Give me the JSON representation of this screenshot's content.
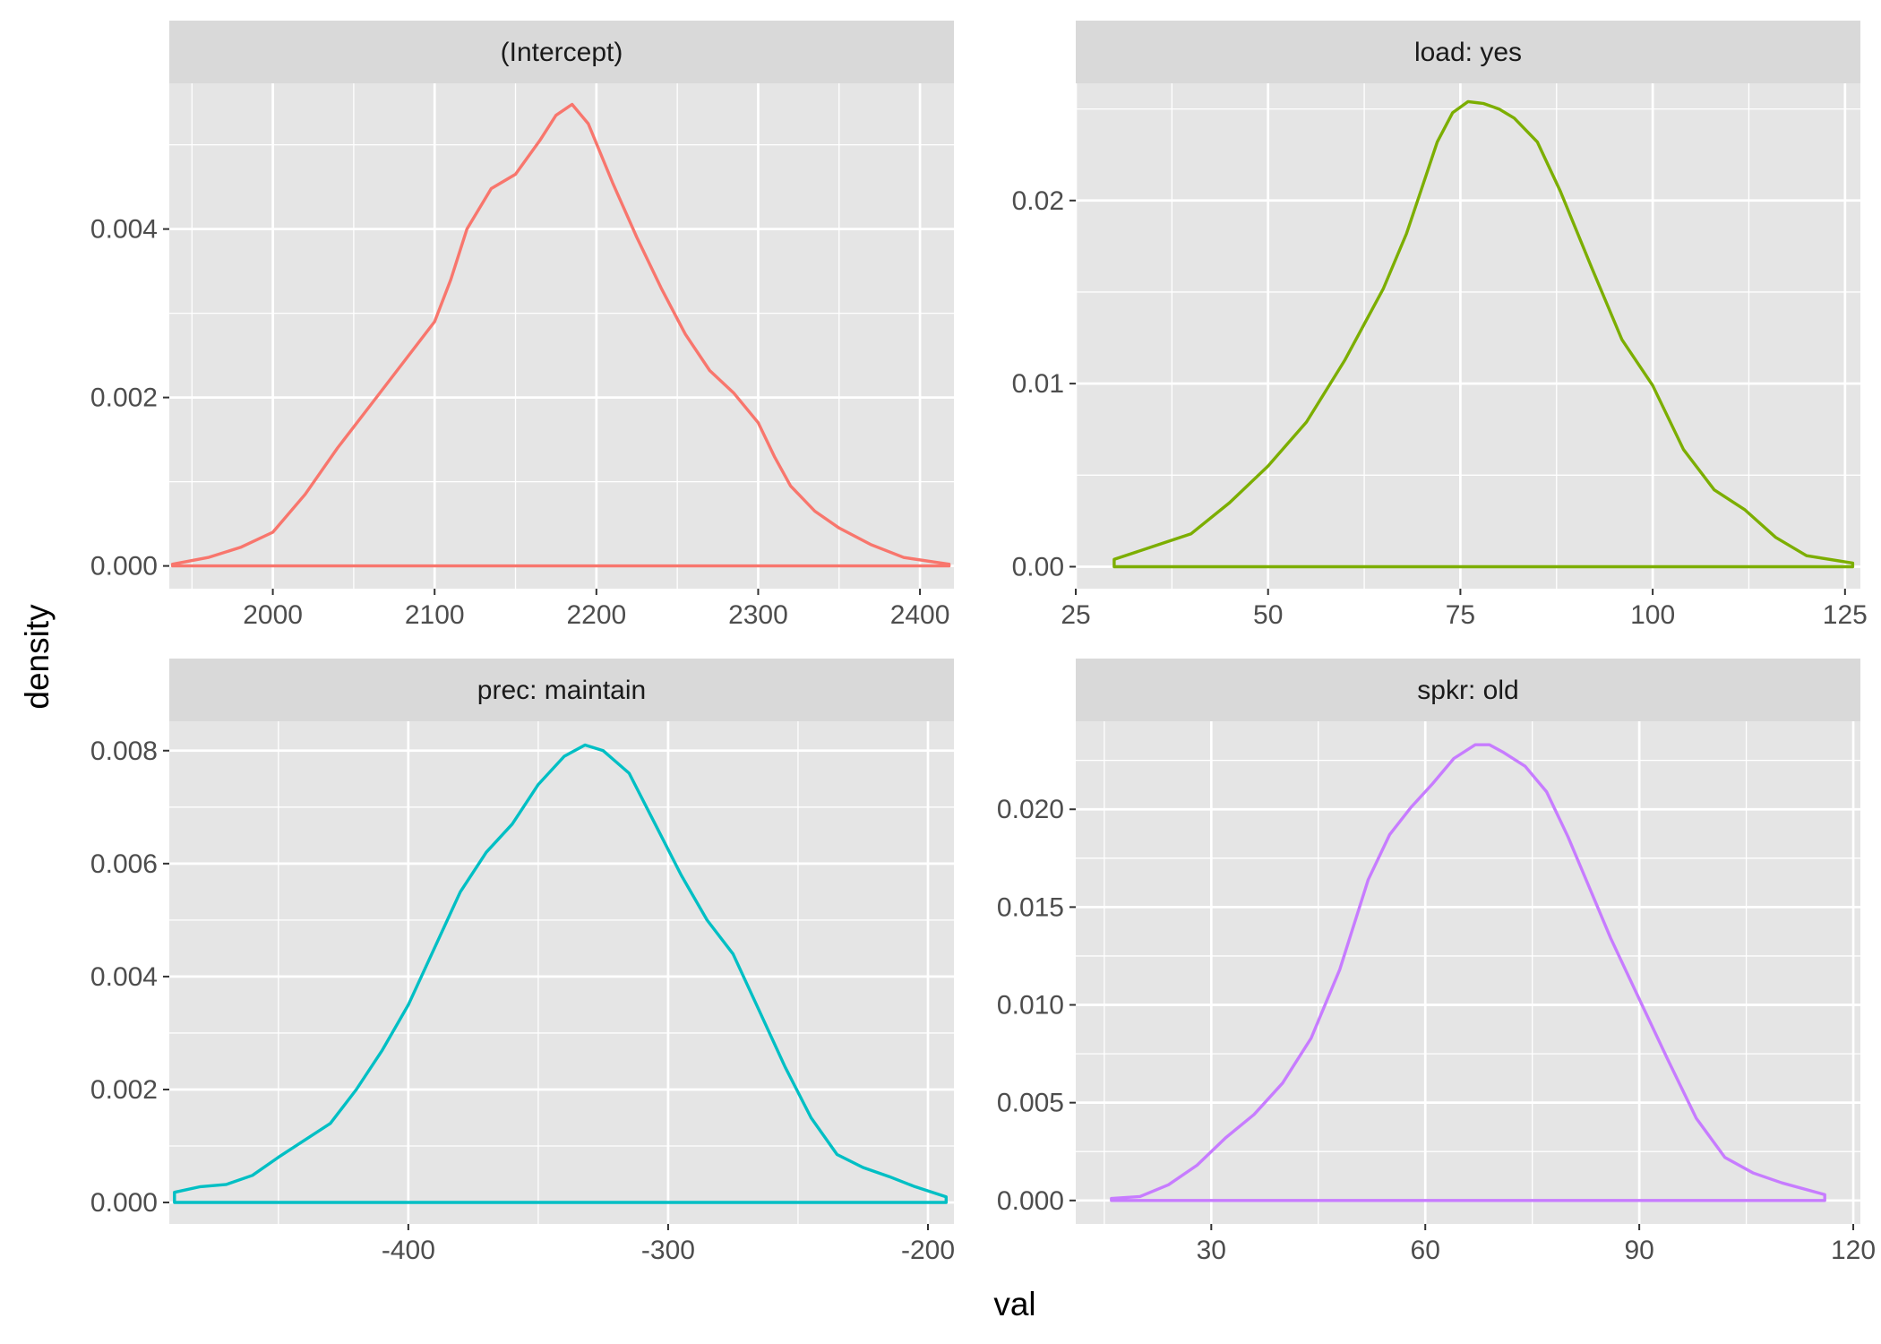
{
  "figure": {
    "xlabel": "val",
    "ylabel": "density",
    "colors": {
      "panel_bg": "#E5E5E5",
      "strip_bg": "#D9D9D9",
      "grid": "#FFFFFF"
    }
  },
  "chart_data": [
    {
      "type": "area",
      "panel": "(Intercept)",
      "color": "#F8766D",
      "xlim": [
        1936,
        2421
      ],
      "ylim": [
        -0.00027,
        0.00573
      ],
      "xticks": [
        2000,
        2100,
        2200,
        2300,
        2400
      ],
      "xtick_labels": [
        "2000",
        "2100",
        "2200",
        "2300",
        "2400"
      ],
      "yticks": [
        0,
        0.002,
        0.004
      ],
      "ytick_labels": [
        "0.000",
        "0.002",
        "0.004"
      ],
      "x": [
        1938,
        1960,
        1980,
        2000,
        2020,
        2040,
        2060,
        2080,
        2100,
        2110,
        2120,
        2135,
        2150,
        2165,
        2175,
        2185,
        2195,
        2210,
        2225,
        2240,
        2255,
        2270,
        2285,
        2300,
        2310,
        2320,
        2335,
        2350,
        2370,
        2390,
        2418
      ],
      "density": [
        2e-05,
        0.0001,
        0.00022,
        0.0004,
        0.00085,
        0.0014,
        0.0019,
        0.0024,
        0.0029,
        0.0034,
        0.004,
        0.00448,
        0.00465,
        0.00505,
        0.00535,
        0.00548,
        0.00525,
        0.00455,
        0.0039,
        0.0033,
        0.00275,
        0.00232,
        0.00205,
        0.0017,
        0.0013,
        0.00095,
        0.00065,
        0.00045,
        0.00025,
        0.0001,
        2e-05
      ]
    },
    {
      "type": "area",
      "panel": "load: yes",
      "color": "#7CAE00",
      "xlim": [
        25,
        127
      ],
      "ylim": [
        -0.0012,
        0.0264
      ],
      "xticks": [
        25,
        50,
        75,
        100,
        125
      ],
      "xtick_labels": [
        "25",
        "50",
        "75",
        "100",
        "125"
      ],
      "yticks": [
        0,
        0.01,
        0.02
      ],
      "ytick_labels": [
        "0.00",
        "0.01",
        "0.02"
      ],
      "x": [
        30,
        35,
        40,
        45,
        50,
        55,
        60,
        65,
        68,
        70,
        72,
        74,
        76,
        78,
        80,
        82,
        85,
        88,
        92,
        96,
        100,
        104,
        108,
        112,
        116,
        120,
        126
      ],
      "density": [
        0.0004,
        0.0011,
        0.0018,
        0.0035,
        0.0055,
        0.0079,
        0.0113,
        0.0152,
        0.0182,
        0.0207,
        0.0232,
        0.0248,
        0.0254,
        0.0253,
        0.025,
        0.0245,
        0.0232,
        0.0205,
        0.0164,
        0.0124,
        0.0099,
        0.0064,
        0.0042,
        0.0031,
        0.0016,
        0.0006,
        0.0002
      ]
    },
    {
      "type": "area",
      "panel": "prec: maintain",
      "color": "#00BFC4",
      "xlim": [
        -492,
        -190
      ],
      "ylim": [
        -0.00038,
        0.00852
      ],
      "xticks": [
        -400,
        -300,
        -200
      ],
      "xtick_labels": [
        "-400",
        "-300",
        "-200"
      ],
      "yticks": [
        0,
        0.002,
        0.004,
        0.006,
        0.008
      ],
      "ytick_labels": [
        "0.000",
        "0.002",
        "0.004",
        "0.006",
        "0.008"
      ],
      "x": [
        -490,
        -480,
        -470,
        -460,
        -450,
        -440,
        -430,
        -420,
        -410,
        -400,
        -390,
        -380,
        -370,
        -360,
        -350,
        -340,
        -332,
        -325,
        -315,
        -305,
        -295,
        -285,
        -275,
        -265,
        -255,
        -245,
        -235,
        -225,
        -215,
        -205,
        -193
      ],
      "density": [
        0.00018,
        0.00028,
        0.00032,
        0.00048,
        0.0008,
        0.0011,
        0.0014,
        0.002,
        0.0027,
        0.0035,
        0.0045,
        0.0055,
        0.0062,
        0.0067,
        0.0074,
        0.0079,
        0.0081,
        0.008,
        0.0076,
        0.0067,
        0.0058,
        0.005,
        0.0044,
        0.0034,
        0.0024,
        0.0015,
        0.00085,
        0.00062,
        0.00046,
        0.00028,
        0.0001
      ]
    },
    {
      "type": "area",
      "panel": "spkr: old",
      "color": "#C77CFF",
      "xlim": [
        11,
        121
      ],
      "ylim": [
        -0.0012,
        0.0245
      ],
      "xticks": [
        30,
        60,
        90,
        120
      ],
      "xtick_labels": [
        "30",
        "60",
        "90",
        "120"
      ],
      "yticks": [
        0,
        0.005,
        0.01,
        0.015,
        0.02
      ],
      "ytick_labels": [
        "0.000",
        "0.005",
        "0.010",
        "0.015",
        "0.020"
      ],
      "x": [
        16,
        20,
        24,
        28,
        32,
        36,
        40,
        44,
        48,
        52,
        55,
        58,
        61,
        64,
        67,
        69,
        71,
        74,
        77,
        80,
        83,
        86,
        90,
        94,
        98,
        102,
        106,
        110,
        116
      ],
      "density": [
        0.0001,
        0.0002,
        0.0008,
        0.0018,
        0.0032,
        0.0044,
        0.006,
        0.0083,
        0.0118,
        0.0164,
        0.0187,
        0.0201,
        0.0213,
        0.0226,
        0.0233,
        0.0233,
        0.0229,
        0.0222,
        0.0209,
        0.0186,
        0.016,
        0.0134,
        0.0103,
        0.0072,
        0.0042,
        0.0022,
        0.0014,
        0.0009,
        0.0003
      ]
    }
  ]
}
